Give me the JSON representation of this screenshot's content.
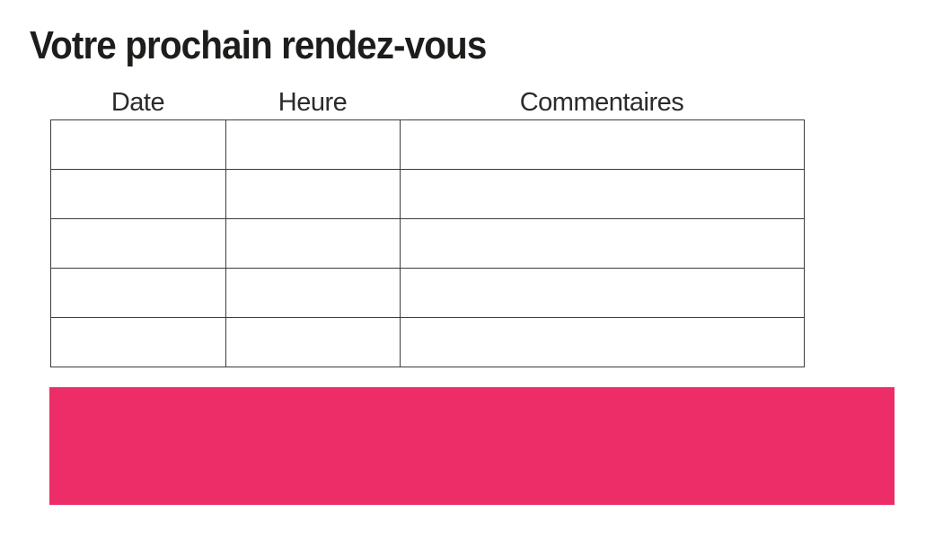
{
  "page": {
    "title": "Votre prochain rendez-vous"
  },
  "table": {
    "headers": [
      "Date",
      "Heure",
      "Commentaires"
    ],
    "rows": [
      [
        "",
        "",
        ""
      ],
      [
        "",
        "",
        ""
      ],
      [
        "",
        "",
        ""
      ],
      [
        "",
        "",
        ""
      ],
      [
        "",
        "",
        ""
      ]
    ]
  },
  "colors": {
    "banner_pink": "#ED2D68",
    "table_border": "#3C3C3C",
    "text": "#1D1D1B"
  }
}
